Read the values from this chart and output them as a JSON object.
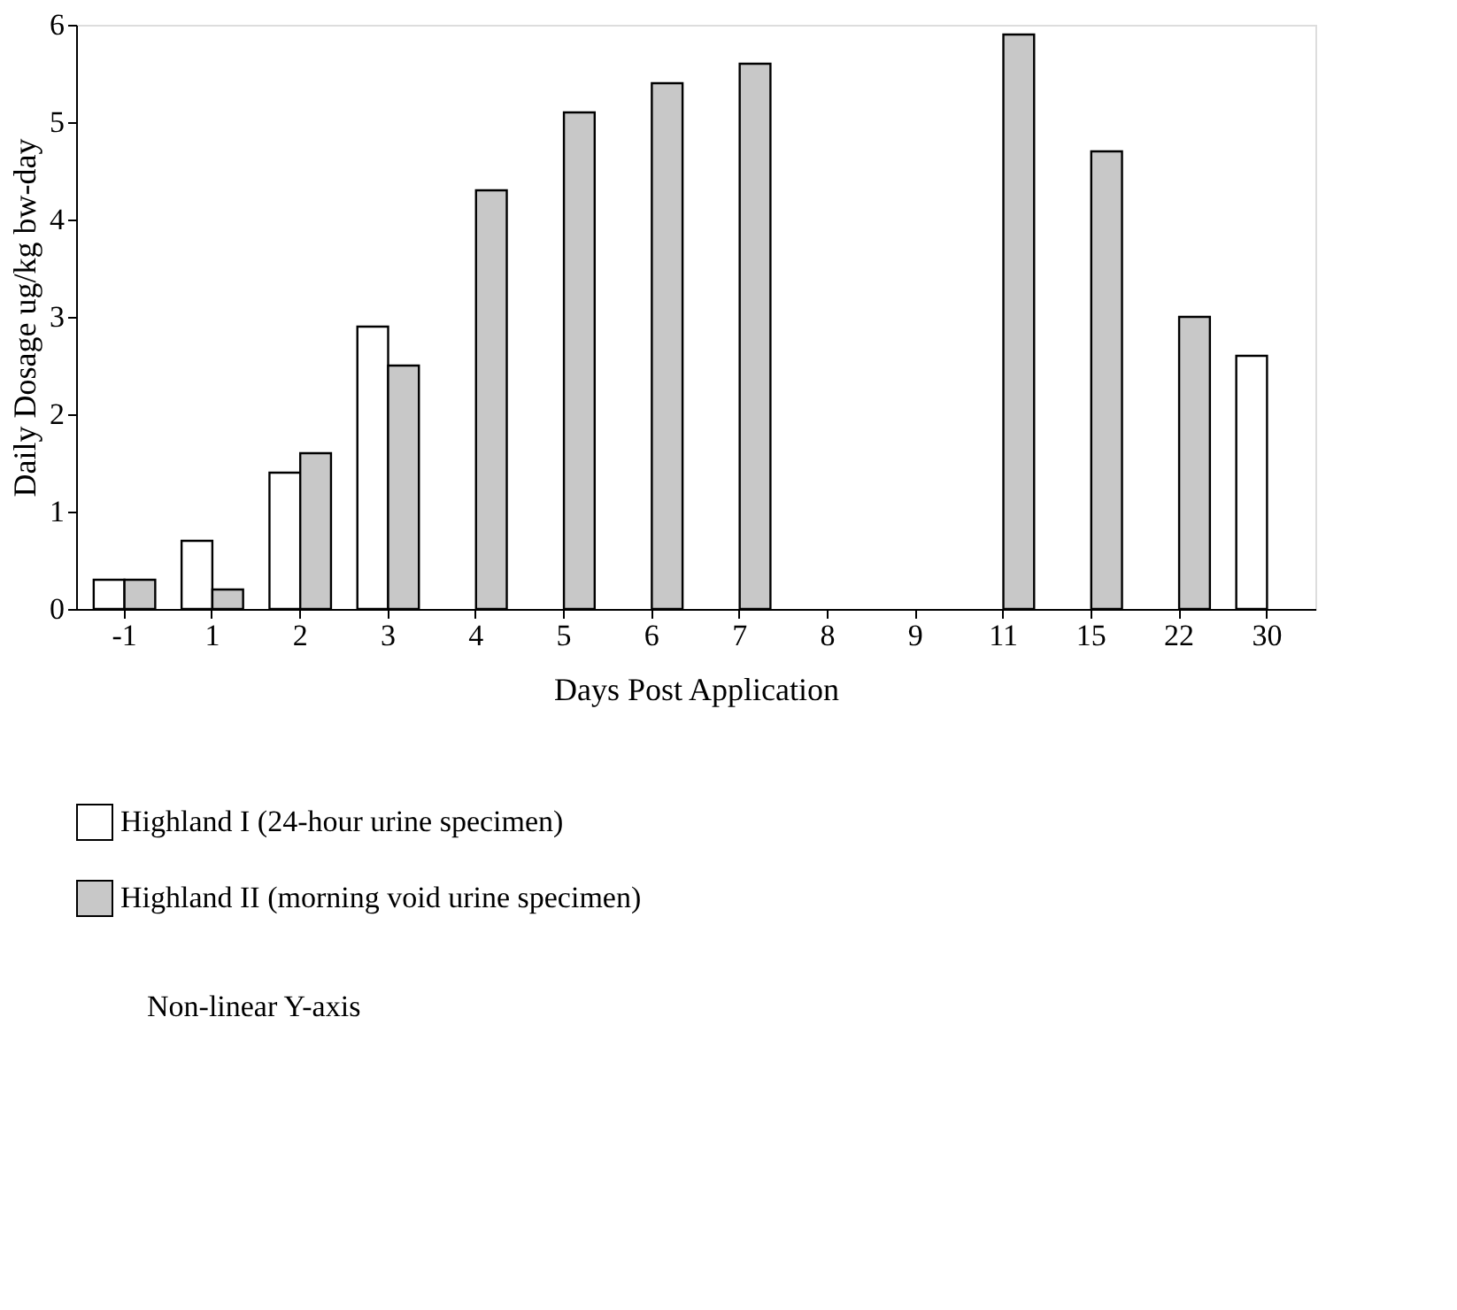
{
  "chart_data": {
    "type": "bar",
    "xlabel": "Days Post Application",
    "ylabel": "Daily Dosage ug/kg bw-day",
    "categories": [
      "-1",
      "1",
      "2",
      "3",
      "4",
      "5",
      "6",
      "7",
      "8",
      "9",
      "11",
      "15",
      "22",
      "30"
    ],
    "series": [
      {
        "name": "Highland I (24-hour urine specimen)",
        "color": "#ffffff",
        "values": [
          0.3,
          0.7,
          1.4,
          2.9,
          null,
          null,
          null,
          null,
          null,
          null,
          null,
          null,
          null,
          2.6
        ]
      },
      {
        "name": "Highland II (morning void urine specimen)",
        "color": "#c8c8c8",
        "values": [
          0.3,
          0.2,
          1.6,
          2.5,
          4.3,
          5.1,
          5.4,
          5.6,
          null,
          null,
          5.9,
          4.7,
          3.0,
          null
        ]
      }
    ],
    "ylim": [
      0,
      6
    ],
    "yticks": [
      0,
      1,
      2,
      3,
      4,
      5,
      6
    ],
    "grid": false,
    "legend": "bottom left",
    "annotations": [
      "Non-linear Y-axis"
    ]
  }
}
